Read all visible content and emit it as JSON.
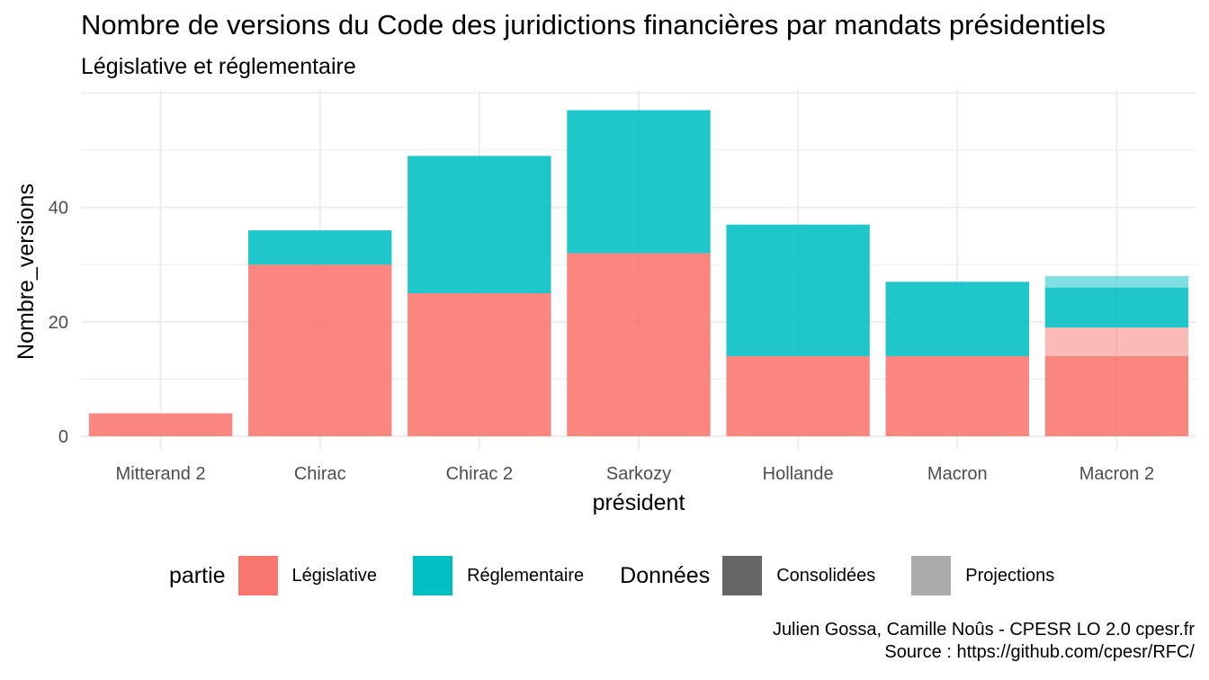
{
  "chart_data": {
    "type": "bar",
    "stacked": true,
    "title": "Nombre de versions du Code des juridictions financières par mandats présidentiels",
    "subtitle": "Législative et réglementaire",
    "xlabel": "président",
    "ylabel": "Nombre_versions",
    "ylim": [
      0,
      57
    ],
    "yticks": [
      0,
      20,
      40
    ],
    "grid": true,
    "categories": [
      "Mitterand 2",
      "Chirac",
      "Chirac 2",
      "Sarkozy",
      "Hollande",
      "Macron",
      "Macron 2"
    ],
    "series": [
      {
        "name": "Législative",
        "donnees": "Consolidées",
        "color": "#F8766D",
        "values": [
          4,
          30,
          25,
          32,
          14,
          14,
          14
        ]
      },
      {
        "name": "Législative",
        "donnees": "Projections",
        "color": "#F8766D",
        "values": [
          0,
          0,
          0,
          0,
          0,
          0,
          5
        ]
      },
      {
        "name": "Réglementaire",
        "donnees": "Consolidées",
        "color": "#00BFC4",
        "values": [
          0,
          6,
          24,
          25,
          23,
          13,
          7
        ]
      },
      {
        "name": "Réglementaire",
        "donnees": "Projections",
        "color": "#00BFC4",
        "values": [
          0,
          0,
          0,
          0,
          0,
          0,
          2
        ]
      }
    ],
    "legend": {
      "placement": "bottom",
      "partie_title": "partie",
      "partie_items": [
        {
          "label": "Législative",
          "color": "#F8766D"
        },
        {
          "label": "Réglementaire",
          "color": "#00BFC4"
        }
      ],
      "donnees_title": "Données",
      "donnees_items": [
        {
          "label": "Consolidées",
          "color": "#666666"
        },
        {
          "label": "Projections",
          "color": "#ABABAB"
        }
      ]
    },
    "caption_line1": "Julien Gossa, Camille Noûs - CPESR LO 2.0 cpesr.fr",
    "caption_line2": "Source : https://github.com/cpesr/RFC/"
  }
}
